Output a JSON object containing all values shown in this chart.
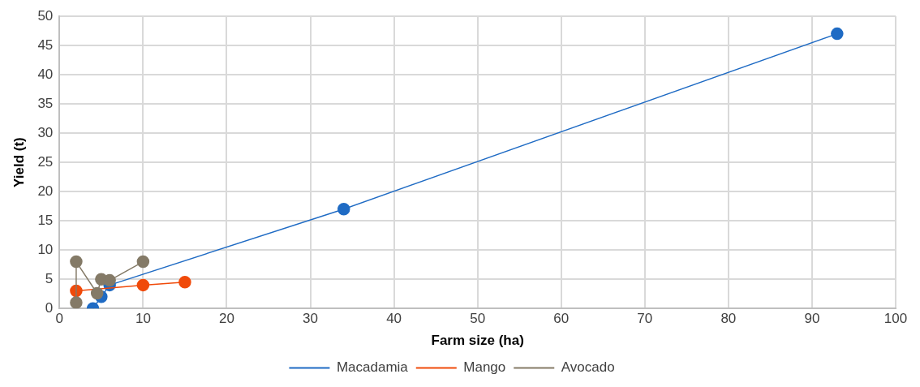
{
  "chart_data": {
    "type": "line",
    "xlabel": "Farm size (ha)",
    "ylabel": "Yield (t)",
    "xlim": [
      0,
      100
    ],
    "xticks": [
      0,
      10,
      20,
      30,
      40,
      50,
      60,
      70,
      80,
      90,
      100
    ],
    "ylim": [
      0,
      50
    ],
    "yticks": [
      0,
      5,
      10,
      15,
      20,
      25,
      30,
      35,
      40,
      45,
      50
    ],
    "grid": true,
    "legend": "bottom",
    "marker": "circle",
    "line_style": "solid",
    "series": [
      {
        "name": "Macadamia",
        "color": "#1f6bc4",
        "x": [
          4,
          5,
          6,
          34,
          93
        ],
        "values": [
          0,
          2,
          4,
          17,
          47
        ]
      },
      {
        "name": "Mango",
        "color": "#f04a0a",
        "x": [
          2,
          10,
          15
        ],
        "values": [
          3,
          4,
          4.5
        ]
      },
      {
        "name": "Avocado",
        "color": "#847a67",
        "x": [
          2,
          2,
          4.5,
          5,
          6,
          10
        ],
        "values": [
          1,
          8,
          2.6,
          5,
          4.8,
          8
        ]
      }
    ]
  }
}
